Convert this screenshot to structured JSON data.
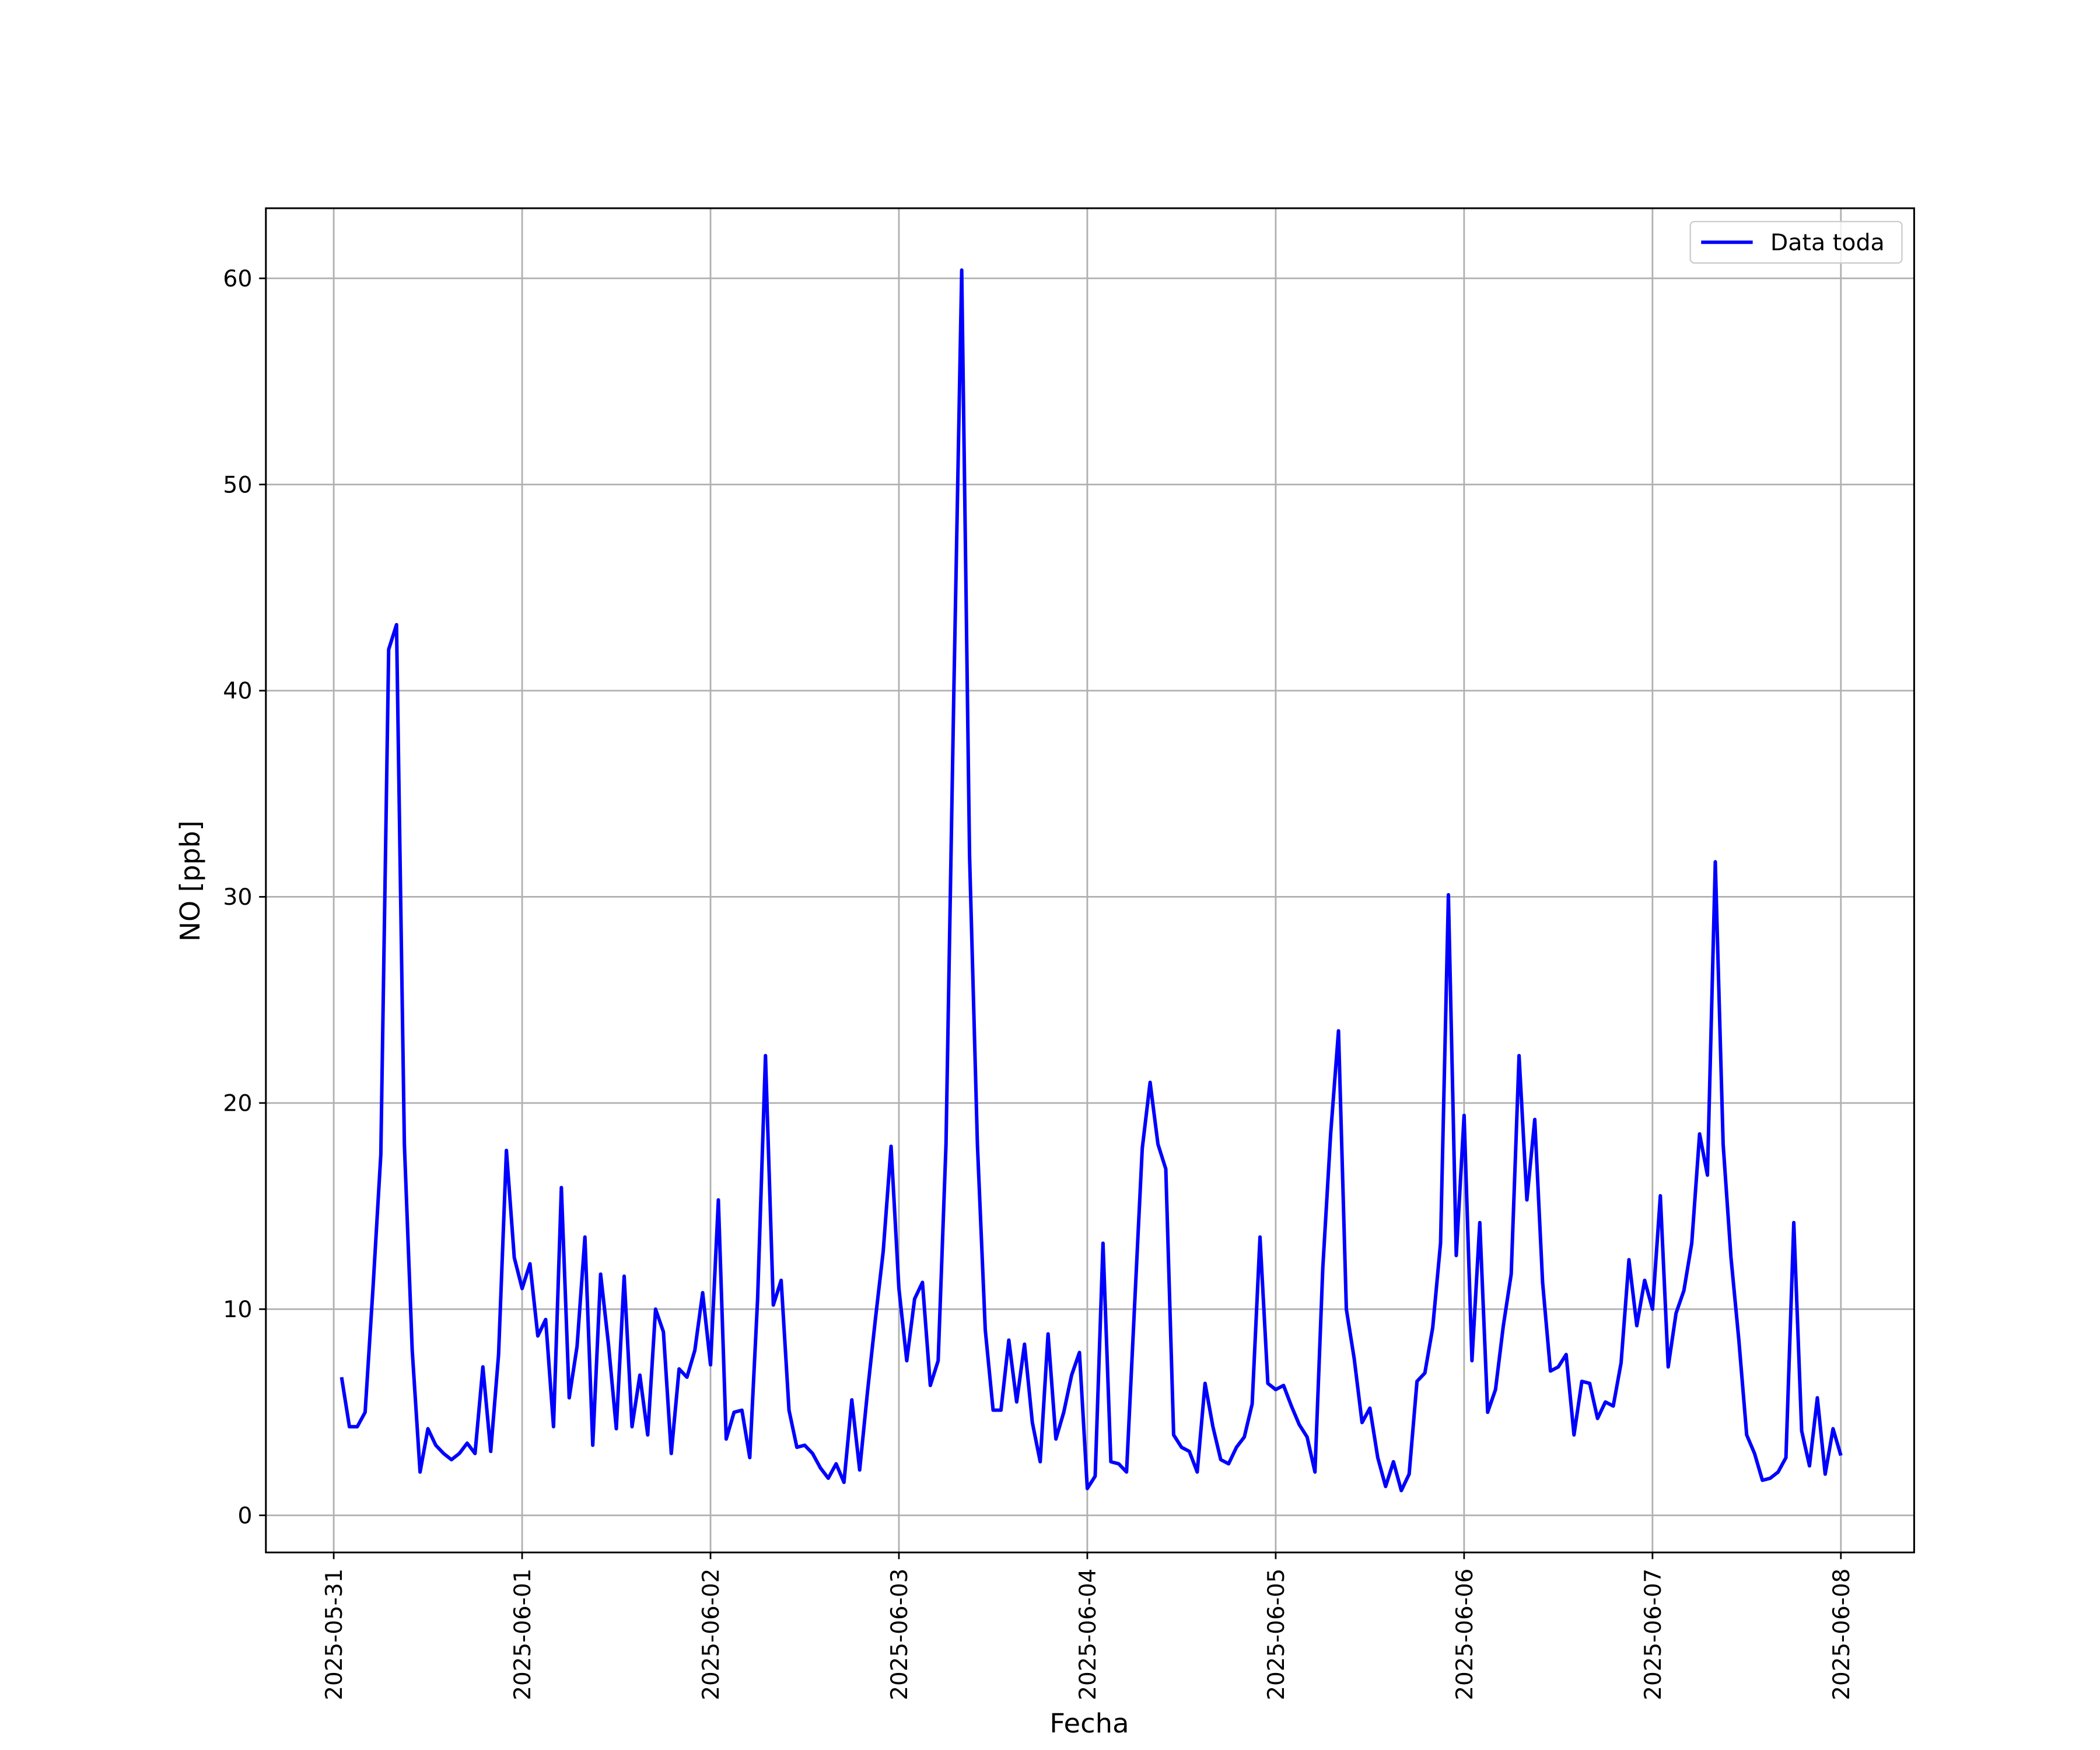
{
  "chart_data": {
    "type": "line",
    "x_label": "Fecha",
    "y_label": "NO [ppb]",
    "xticks": [
      "2025-05-31",
      "2025-06-01",
      "2025-06-02",
      "2025-06-03",
      "2025-06-04",
      "2025-06-05",
      "2025-06-06",
      "2025-06-07",
      "2025-06-08"
    ],
    "ylim": [
      -1.8,
      63.4
    ],
    "yticks": [
      0,
      10,
      20,
      30,
      40,
      50,
      60
    ],
    "grid": true,
    "legend": "upper right",
    "series": [
      {
        "name": "Data toda",
        "color": "#0000ff",
        "values": [
          6.7,
          4.3,
          4.3,
          5.0,
          11,
          17.5,
          42,
          43.2,
          18,
          8,
          2.1,
          4.2,
          3.4,
          3.0,
          2.7,
          3.0,
          3.5,
          3.0,
          7.2,
          3.1,
          7.8,
          17.7,
          12.5,
          11.0,
          12.2,
          8.7,
          9.5,
          4.3,
          15.9,
          5.7,
          8.2,
          13.5,
          3.4,
          11.7,
          8.3,
          4.2,
          11.6,
          4.3,
          6.8,
          3.9,
          10.0,
          8.9,
          3.0,
          7.1,
          6.7,
          8.0,
          10.8,
          7.3,
          15.3,
          3.7,
          5.0,
          5.1,
          2.8,
          10.5,
          22.3,
          10.2,
          11.4,
          5.1,
          3.3,
          3.4,
          3.0,
          2.3,
          1.8,
          2.5,
          1.6,
          5.6,
          2.2,
          6.0,
          9.5,
          12.8,
          17.9,
          11.0,
          7.5,
          10.5,
          11.3,
          6.3,
          7.5,
          18,
          40,
          60.4,
          32,
          18,
          9.0,
          5.1,
          5.1,
          8.5,
          5.5,
          8.3,
          4.5,
          2.6,
          8.8,
          3.7,
          5.0,
          6.8,
          7.9,
          1.3,
          1.9,
          13.2,
          2.6,
          2.5,
          2.1,
          10,
          17.8,
          21,
          18,
          16.8,
          3.9,
          3.3,
          3.1,
          2.1,
          6.4,
          4.3,
          2.7,
          2.5,
          3.3,
          3.8,
          5.4,
          13.5,
          6.4,
          6.1,
          6.3,
          5.3,
          4.4,
          3.8,
          2.1,
          12.0,
          18.5,
          23.5,
          10,
          7.6,
          4.5,
          5.2,
          2.8,
          1.4,
          2.6,
          1.2,
          2.0,
          6.5,
          6.9,
          9.1,
          13.2,
          30.1,
          12.6,
          19.4,
          7.5,
          14.2,
          5.0,
          6.1,
          9.2,
          11.7,
          22.3,
          15.3,
          19.2,
          11.3,
          7.0,
          7.2,
          7.8,
          3.9,
          6.5,
          6.4,
          4.7,
          5.5,
          5.3,
          7.4,
          12.4,
          9.2,
          11.4,
          10.0,
          15.5,
          7.2,
          9.8,
          10.9,
          13.2,
          18.5,
          16.5,
          31.7,
          18.0,
          12.5,
          8.5,
          3.9,
          3.0,
          1.7,
          1.8,
          2.1,
          2.8,
          14.2,
          4.1,
          2.4,
          5.7,
          2.0,
          4.2,
          2.9
        ]
      }
    ]
  }
}
